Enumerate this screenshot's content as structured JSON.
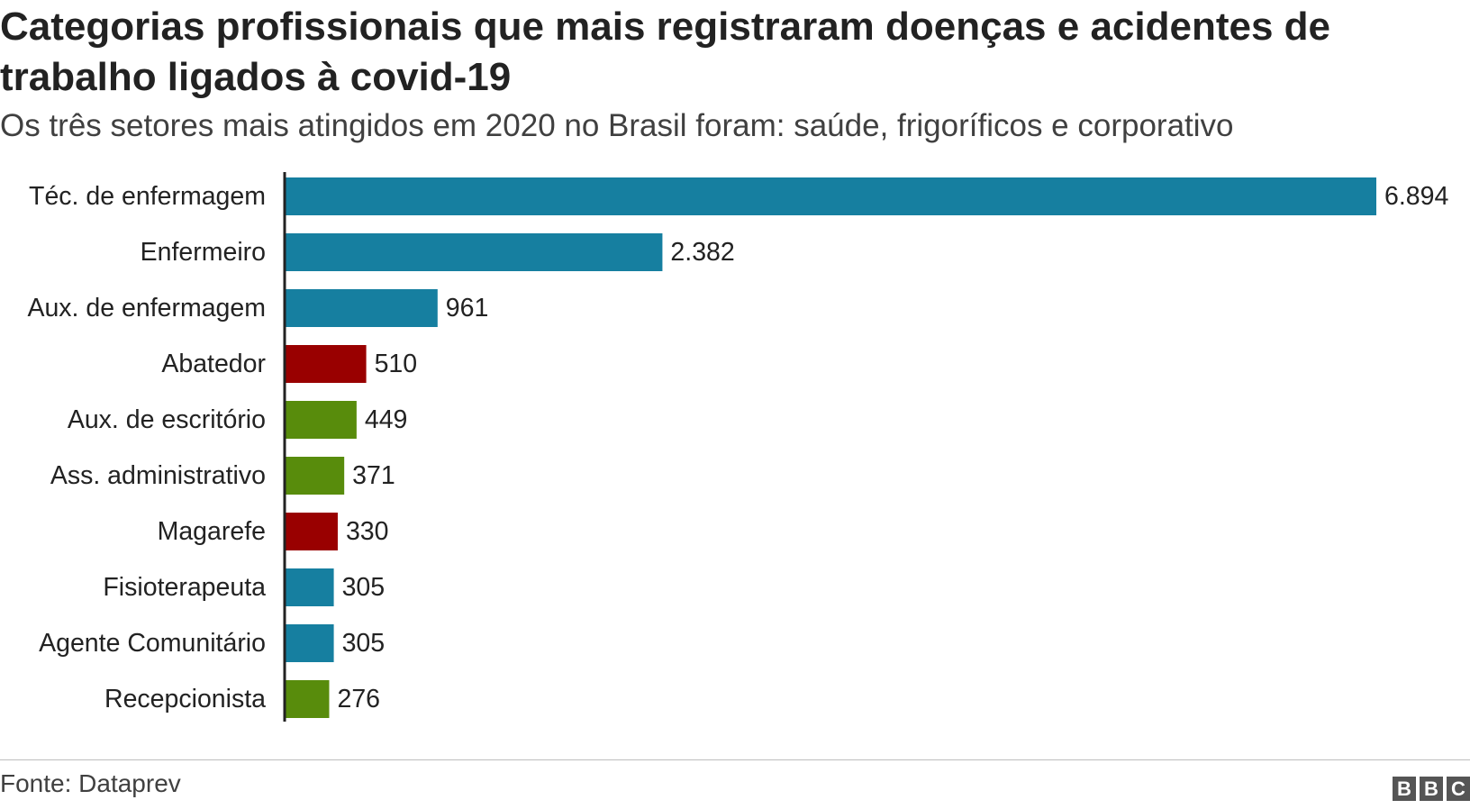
{
  "header": {
    "title": "Categorias profissionais que mais registraram doenças e acidentes de trabalho ligados à covid-19",
    "subtitle": "Os três setores mais atingidos em 2020 no Brasil foram: saúde, frigoríficos e corporativo"
  },
  "footer": {
    "source": "Fonte: Dataprev",
    "logo_letters": [
      "B",
      "B",
      "C"
    ]
  },
  "colors": {
    "saude": "#167fa0",
    "frigorificos": "#990000",
    "corporativo": "#588c0c",
    "axis": "#222222"
  },
  "chart_data": {
    "type": "bar",
    "orientation": "horizontal",
    "title": "Categorias profissionais que mais registraram doenças e acidentes de trabalho ligados à covid-19",
    "subtitle": "Os três setores mais atingidos em 2020 no Brasil foram: saúde, frigoríficos e corporativo",
    "xlabel": "",
    "ylabel": "",
    "xlim": [
      0,
      6894
    ],
    "grid": false,
    "categories": [
      "Téc. de enfermagem",
      "Enfermeiro",
      "Aux. de enfermagem",
      "Abatedor",
      "Aux. de escritório",
      "Ass. administrativo",
      "Magarefe",
      "Fisioterapeuta",
      "Agente Comunitário",
      "Recepcionista"
    ],
    "values": [
      6894,
      2382,
      961,
      510,
      449,
      371,
      330,
      305,
      305,
      276
    ],
    "value_labels": [
      "6.894",
      "2.382",
      "961",
      "510",
      "449",
      "371",
      "330",
      "305",
      "305",
      "276"
    ],
    "bar_colors": [
      "#167fa0",
      "#167fa0",
      "#167fa0",
      "#990000",
      "#588c0c",
      "#588c0c",
      "#990000",
      "#167fa0",
      "#167fa0",
      "#588c0c"
    ]
  }
}
